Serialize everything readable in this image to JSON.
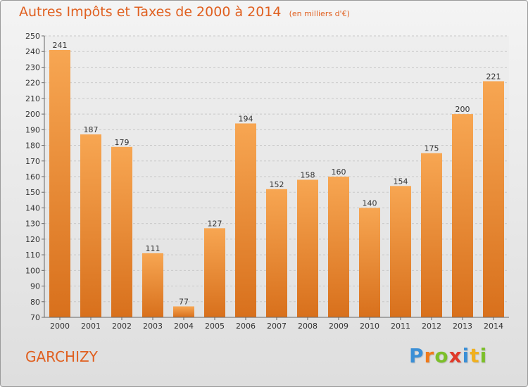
{
  "header": {
    "title": "Autres Impôts et Taxes de 2000 à 2014",
    "subtitle": "(en milliers d'€)"
  },
  "footer": {
    "commune": "GARCHIZY",
    "logo_letters": [
      "P",
      "r",
      "o",
      "x",
      "i",
      "t",
      "i"
    ],
    "logo_colors": [
      "#3b8fd6",
      "#f07a1a",
      "#7cbf2a",
      "#e03a2a",
      "#3b8fd6",
      "#f0b020",
      "#7cbf2a"
    ]
  },
  "chart_data": {
    "type": "bar",
    "categories": [
      "2000",
      "2001",
      "2002",
      "2003",
      "2004",
      "2005",
      "2006",
      "2007",
      "2008",
      "2009",
      "2010",
      "2011",
      "2012",
      "2013",
      "2014"
    ],
    "values": [
      241,
      187,
      179,
      111,
      77,
      127,
      194,
      152,
      158,
      160,
      140,
      154,
      175,
      200,
      221
    ],
    "ylim": [
      70,
      250
    ],
    "yticks": [
      70,
      80,
      90,
      100,
      110,
      120,
      130,
      140,
      150,
      160,
      170,
      180,
      190,
      200,
      210,
      220,
      230,
      240,
      250
    ],
    "grid": true,
    "bar_color_top": "#f7a652",
    "bar_color_bottom": "#d8701c",
    "title": "Autres Impôts et Taxes de 2000 à 2014",
    "subtitle": "(en milliers d'€)"
  }
}
